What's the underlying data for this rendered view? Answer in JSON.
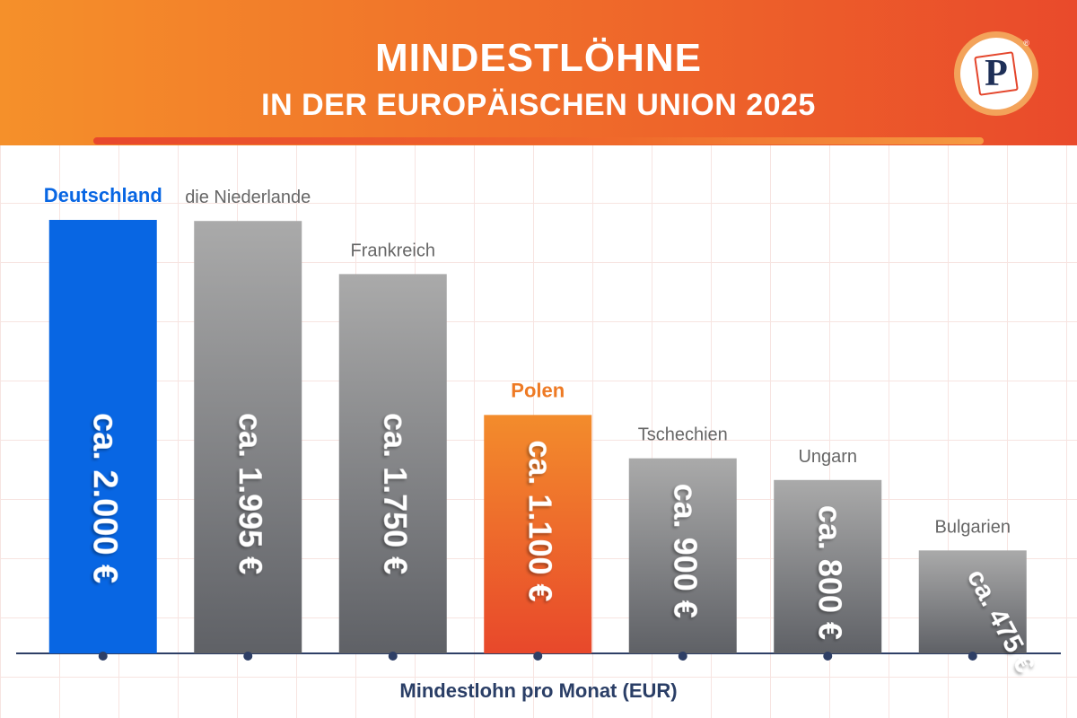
{
  "header": {
    "title_line1": "MINDESTLÖHNE",
    "title_line2": "IN DER EUROPÄISCHEN UNION 2025",
    "logo_letter": "P",
    "logo_registered": "®"
  },
  "colors": {
    "highlight_blue": "#0866e3",
    "highlight_orange": "#ee7a24",
    "bar_gray_top": "#aaaaaa",
    "bar_gray_bottom": "#5f6166",
    "category_gray": "#666666",
    "axis": "#2e3f66"
  },
  "chart_data": {
    "type": "bar",
    "title": "MINDESTLÖHNE IN DER EUROPÄISCHEN UNION 2025",
    "xlabel": "Mindestlohn pro Monat (EUR)",
    "ylabel": "",
    "ylim": [
      0,
      2000
    ],
    "grid": true,
    "categories": [
      "Deutschland",
      "die Niederlande",
      "Frankreich",
      "Polen",
      "Tschechien",
      "Ungarn",
      "Bulgarien"
    ],
    "values": [
      2000,
      1995,
      1750,
      1100,
      900,
      800,
      475
    ],
    "value_labels": [
      "ca. 2.000 €",
      "ca. 1.995 €",
      "ca. 1.750 €",
      "ca. 1.100 €",
      "ca. 900 €",
      "ca. 800 €",
      "ca. 475 €"
    ],
    "highlight": [
      "blue",
      "gray",
      "gray",
      "orange",
      "gray",
      "gray",
      "gray"
    ]
  }
}
